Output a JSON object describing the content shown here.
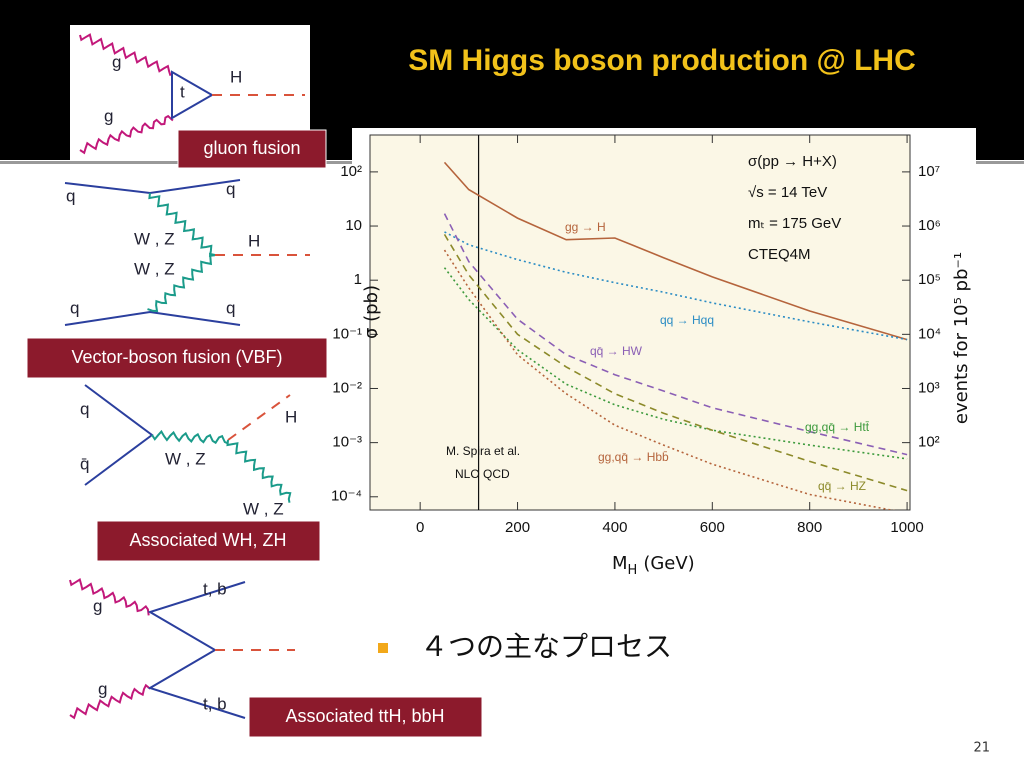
{
  "title": "SM Higgs boson production @ LHC",
  "diagrams": [
    {
      "caption": "gluon fusion",
      "labels": [
        "g",
        "t",
        "H",
        "g"
      ]
    },
    {
      "caption": "Vector-boson fusion (VBF)",
      "labels": [
        "q",
        "q",
        "W , Z",
        "H",
        "W , Z",
        "q",
        "q"
      ]
    },
    {
      "caption": "Associated WH, ZH",
      "labels": [
        "q",
        "q̄",
        "W , Z",
        "H",
        "W , Z"
      ]
    },
    {
      "caption": "Associated ttH, bbH",
      "labels": [
        "g",
        "t, b",
        "g",
        "t, b"
      ]
    }
  ],
  "chart_data": {
    "type": "line",
    "x_label": {
      "text": "M",
      "subscript": "H",
      "unit": "(GeV)"
    },
    "y_label": "σ (pb)",
    "y2_label": "events for 10⁵ pb⁻¹",
    "annotations": [
      "σ(pp → H+X)",
      "√s = 14 TeV",
      "mₜ = 175 GeV",
      "CTEQ4M",
      "M. Spira et al.",
      "NLO  QCD"
    ],
    "log_y": true,
    "xlim": [
      -103,
      1006
    ],
    "xticks": [
      0,
      200,
      400,
      600,
      800,
      1000
    ],
    "ylim": [
      5.7e-05,
      480
    ],
    "yticks": [
      {
        "value": 100,
        "label": "10²"
      },
      10,
      1,
      {
        "value": 0.1,
        "label": "10⁻¹"
      },
      {
        "value": 0.01,
        "label": "10⁻²"
      },
      {
        "value": 0.001,
        "label": "10⁻³"
      },
      {
        "value": 0.0001,
        "label": "10⁻⁴"
      }
    ],
    "y2lim": [
      5.7,
      48000000
    ],
    "y2ticks": [
      {
        "value": 100,
        "label": "10²"
      },
      {
        "value": 1000,
        "label": "10³"
      },
      {
        "value": 10000,
        "label": "10⁴"
      },
      {
        "value": 100000,
        "label": "10⁵"
      },
      {
        "value": 1000000,
        "label": "10⁶"
      },
      {
        "value": 10000000,
        "label": "10⁷"
      }
    ],
    "vline_x": 120,
    "x": [
      50,
      100,
      200,
      300,
      400,
      500,
      600,
      800,
      1000
    ],
    "series": [
      {
        "name": "gg → H",
        "color": "#b5643c",
        "style": "solid",
        "values": [
          150,
          47,
          14,
          5.6,
          6,
          2.6,
          1.15,
          0.27,
          0.08
        ]
      },
      {
        "name": "qq → Hqq",
        "color": "#2a8cc4",
        "style": "dotted",
        "values": [
          7.8,
          4.5,
          2.4,
          1.4,
          0.9,
          0.6,
          0.38,
          0.17,
          0.08
        ]
      },
      {
        "name": "qq̄ → HW",
        "color": "#8b5fb5",
        "style": "dashed",
        "values": [
          17,
          2.2,
          0.19,
          0.042,
          0.018,
          0.009,
          0.0044,
          0.0016,
          0.0006
        ]
      },
      {
        "name": "gg,qq̄ → Htt̄",
        "color": "#3c9a3c",
        "style": "dotted",
        "values": [
          1.7,
          0.44,
          0.052,
          0.012,
          0.005,
          0.0027,
          0.0017,
          0.0009,
          0.0005
        ]
      },
      {
        "name": "gg,qq̄ → Hbb̄",
        "color": "#b5643c",
        "style": "dotted",
        "values": [
          3.6,
          0.72,
          0.042,
          0.008,
          0.0021,
          0.0009,
          0.0004,
          0.00011,
          5e-05
        ]
      },
      {
        "name": "qq̄ → HZ",
        "color": "#8c8a2a",
        "style": "dashed",
        "values": [
          7,
          1.25,
          0.1,
          0.025,
          0.008,
          0.0035,
          0.0017,
          0.00045,
          0.00013
        ]
      }
    ]
  },
  "bullet": "４つの主なプロセス",
  "page_number": "21"
}
